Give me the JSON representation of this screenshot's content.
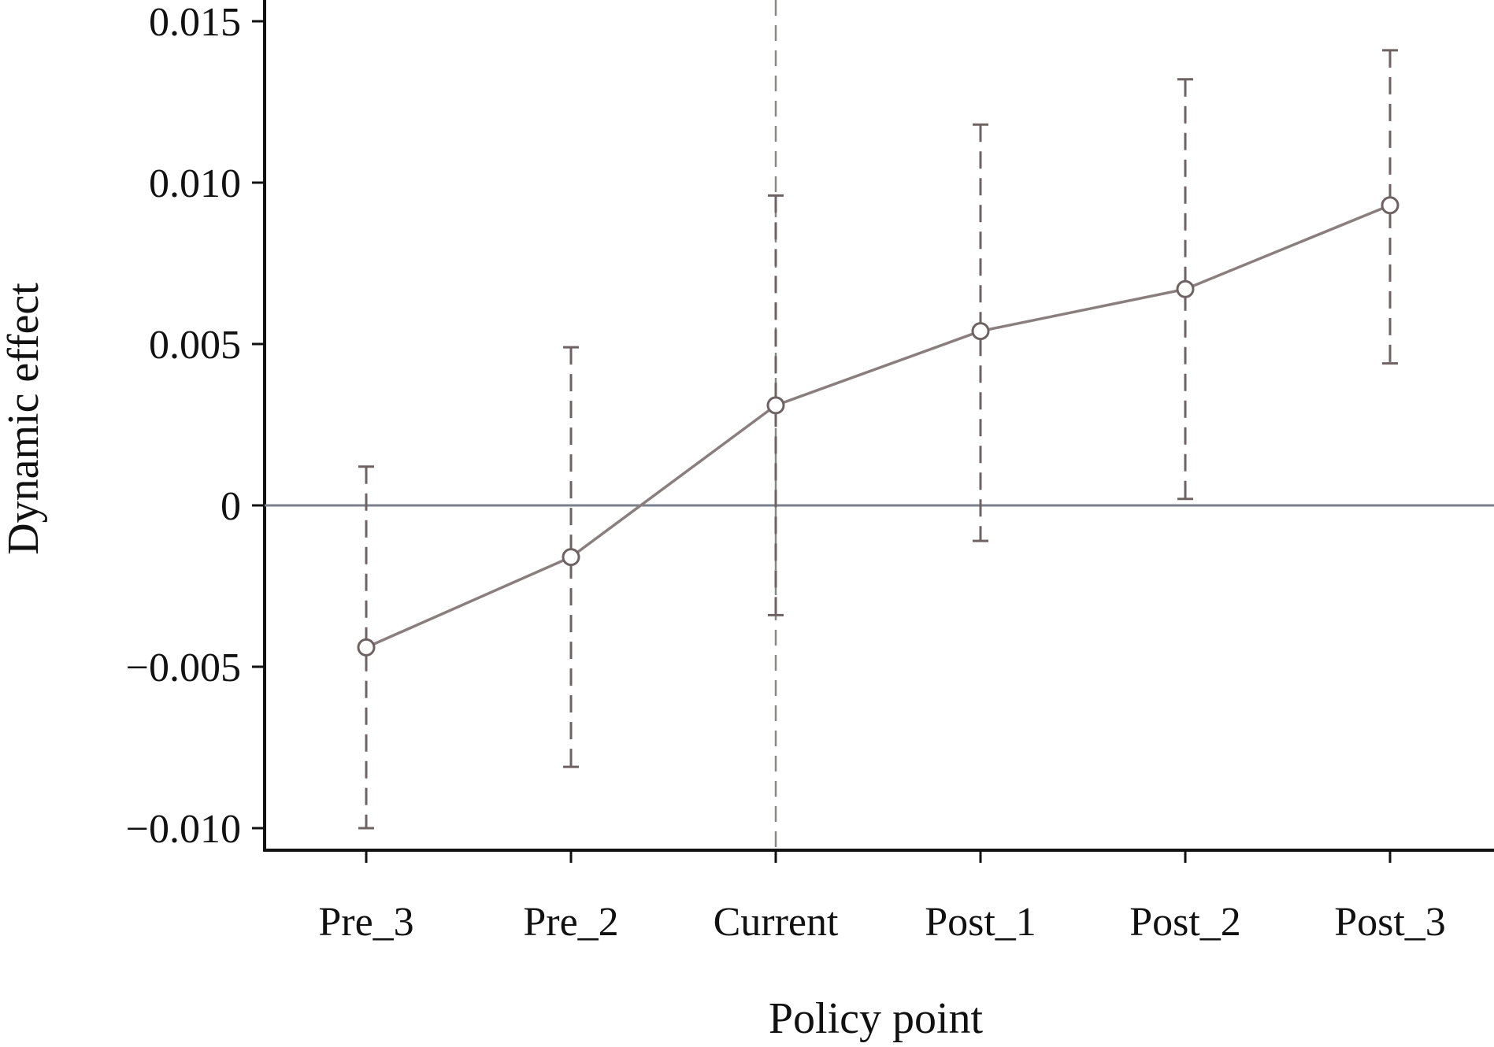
{
  "chart_data": {
    "type": "line",
    "xlabel": "Policy point",
    "ylabel": "Dynamic effect",
    "categories": [
      "Pre_3",
      "Pre_2",
      "Current",
      "Post_1",
      "Post_2",
      "Post_3"
    ],
    "ylim": [
      -0.0106,
      0.0156
    ],
    "yticks": [
      {
        "value": 0.015,
        "label": "0.015"
      },
      {
        "value": 0.01,
        "label": "0.010"
      },
      {
        "value": 0.005,
        "label": "0.005"
      },
      {
        "value": 0,
        "label": "0"
      },
      {
        "value": -0.005,
        "label": "−0.005"
      },
      {
        "value": -0.01,
        "label": "−0.010"
      }
    ],
    "series": [
      {
        "values": [
          -0.0044,
          -0.0016,
          0.0031,
          0.0054,
          0.0067,
          0.0093
        ],
        "ci_lower": [
          -0.01,
          -0.0081,
          -0.0034,
          -0.0011,
          0.0002,
          0.0044
        ],
        "ci_upper": [
          0.0012,
          0.0049,
          0.0096,
          0.0118,
          0.0132,
          0.0141
        ]
      }
    ],
    "reference_lines": {
      "horizontal_at": 0,
      "vertical_at_category": "Current",
      "vertical_style": "dashed"
    },
    "grid": false,
    "legend": "none",
    "colors": {
      "series": "#8a7e7e",
      "error_bars": "#6e6262",
      "zero_line": "#7a7f8c",
      "event_line": "#858a85",
      "axis": "#111111"
    }
  }
}
